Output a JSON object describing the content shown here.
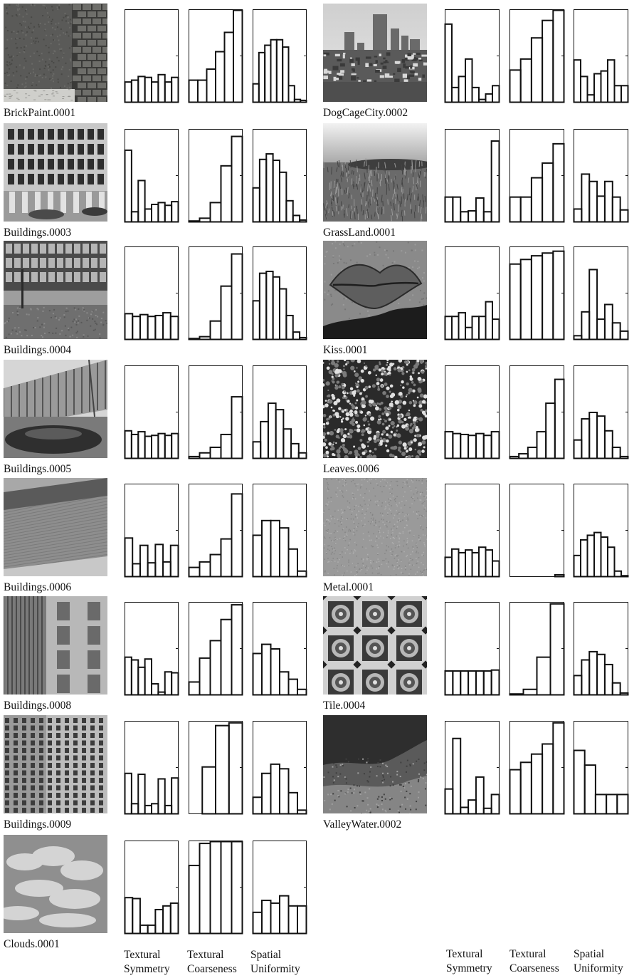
{
  "axis_labels": {
    "left": [
      "Textural Symmetry",
      "Textural Coarseness",
      "Spatial Uniformity"
    ],
    "right": [
      "Textural Symmetry",
      "Textural Coarseness",
      "Spatial Uniformity"
    ]
  },
  "chart_data": {
    "type": "bar",
    "ylim": [
      0,
      1
    ],
    "columns": [
      "Textural Symmetry",
      "Textural Coarseness",
      "Spatial Uniformity"
    ],
    "textures": [
      {
        "name": "BrickPaint.0001",
        "image": "brick",
        "symmetry": [
          0.22,
          0.24,
          0.28,
          0.27,
          0.22,
          0.3,
          0.22,
          0.27
        ],
        "coarseness": [
          0.24,
          0.24,
          0.36,
          0.55,
          0.76,
          1.0
        ],
        "uniformity": [
          0.2,
          0.54,
          0.62,
          0.68,
          0.68,
          0.6,
          0.18,
          0.03,
          0.02
        ]
      },
      {
        "name": "DogCageCity.0002",
        "image": "city",
        "symmetry": [
          0.85,
          0.16,
          0.28,
          0.47,
          0.16,
          0.03,
          0.09,
          0.18
        ],
        "coarseness": [
          0.35,
          0.47,
          0.7,
          0.89,
          1.0
        ],
        "uniformity": [
          0.46,
          0.28,
          0.08,
          0.31,
          0.34,
          0.46,
          0.18,
          0.18
        ]
      },
      {
        "name": "Buildings.0003",
        "image": "building3",
        "symmetry": [
          0.78,
          0.11,
          0.45,
          0.14,
          0.19,
          0.21,
          0.18,
          0.22
        ],
        "coarseness": [
          0.01,
          0.04,
          0.21,
          0.61,
          0.93
        ],
        "uniformity": [
          0.37,
          0.68,
          0.74,
          0.67,
          0.54,
          0.23,
          0.07,
          0.02
        ]
      },
      {
        "name": "GrassLand.0001",
        "image": "grass",
        "symmetry": [
          0.27,
          0.27,
          0.11,
          0.12,
          0.26,
          0.11,
          0.88
        ],
        "coarseness": [
          0.27,
          0.27,
          0.48,
          0.64,
          0.85
        ],
        "uniformity": [
          0.14,
          0.52,
          0.44,
          0.28,
          0.44,
          0.27,
          0.13
        ]
      },
      {
        "name": "Buildings.0004",
        "image": "building4",
        "symmetry": [
          0.28,
          0.25,
          0.27,
          0.25,
          0.26,
          0.29,
          0.25
        ],
        "coarseness": [
          0.01,
          0.03,
          0.2,
          0.58,
          0.93
        ],
        "uniformity": [
          0.42,
          0.72,
          0.74,
          0.68,
          0.55,
          0.26,
          0.08,
          0.02
        ]
      },
      {
        "name": "Kiss.0001",
        "image": "kiss",
        "symmetry": [
          0.25,
          0.25,
          0.29,
          0.13,
          0.25,
          0.25,
          0.41,
          0.22
        ],
        "coarseness": [
          0.82,
          0.87,
          0.91,
          0.94,
          0.96
        ],
        "uniformity": [
          0.04,
          0.3,
          0.76,
          0.22,
          0.38,
          0.18,
          0.09
        ]
      },
      {
        "name": "Buildings.0005",
        "image": "building5",
        "symmetry": [
          0.3,
          0.26,
          0.29,
          0.24,
          0.25,
          0.27,
          0.25,
          0.27
        ],
        "coarseness": [
          0.02,
          0.06,
          0.12,
          0.26,
          0.67
        ],
        "uniformity": [
          0.18,
          0.4,
          0.6,
          0.53,
          0.32,
          0.16,
          0.06
        ]
      },
      {
        "name": "Leaves.0006",
        "image": "leaves",
        "symmetry": [
          0.29,
          0.27,
          0.26,
          0.25,
          0.27,
          0.25,
          0.29
        ],
        "coarseness": [
          0.02,
          0.05,
          0.12,
          0.29,
          0.6,
          0.86
        ],
        "uniformity": [
          0.2,
          0.43,
          0.5,
          0.46,
          0.3,
          0.12,
          0.02
        ]
      },
      {
        "name": "Buildings.0006",
        "image": "building6",
        "symmetry": [
          0.42,
          0.14,
          0.34,
          0.15,
          0.35,
          0.16,
          0.34
        ],
        "coarseness": [
          0.1,
          0.16,
          0.24,
          0.41,
          0.9
        ],
        "uniformity": [
          0.45,
          0.61,
          0.61,
          0.53,
          0.3,
          0.06
        ]
      },
      {
        "name": "Metal.0001",
        "image": "metal",
        "symmetry": [
          0.21,
          0.3,
          0.26,
          0.29,
          0.26,
          0.32,
          0.29,
          0.17
        ],
        "coarseness": [
          0.0,
          0.0,
          0.0,
          0.0,
          0.0,
          0.02
        ],
        "uniformity": [
          0.23,
          0.4,
          0.45,
          0.48,
          0.43,
          0.32,
          0.06,
          0.01
        ]
      },
      {
        "name": "Buildings.0008",
        "image": "building8",
        "symmetry": [
          0.41,
          0.38,
          0.3,
          0.39,
          0.12,
          0.03,
          0.25,
          0.24
        ],
        "coarseness": [
          0.14,
          0.4,
          0.59,
          0.82,
          0.98
        ],
        "uniformity": [
          0.45,
          0.55,
          0.5,
          0.25,
          0.17,
          0.06
        ]
      },
      {
        "name": "Tile.0004",
        "image": "tile",
        "symmetry": [
          0.26,
          0.26,
          0.26,
          0.26,
          0.26,
          0.26,
          0.27
        ],
        "coarseness": [
          0.01,
          0.06,
          0.41,
          0.99
        ],
        "uniformity": [
          0.21,
          0.38,
          0.47,
          0.44,
          0.33,
          0.13,
          0.02
        ]
      },
      {
        "name": "Buildings.0009",
        "image": "building9",
        "symmetry": [
          0.44,
          0.11,
          0.43,
          0.09,
          0.11,
          0.38,
          0.09,
          0.39
        ],
        "coarseness": [
          0.0,
          0.51,
          0.96,
          0.99
        ],
        "uniformity": [
          0.18,
          0.44,
          0.54,
          0.49,
          0.23,
          0.04
        ]
      },
      {
        "name": "ValleyWater.0002",
        "image": "valley",
        "symmetry": [
          0.27,
          0.82,
          0.07,
          0.15,
          0.4,
          0.06,
          0.21
        ],
        "coarseness": [
          0.48,
          0.56,
          0.65,
          0.76,
          0.99
        ],
        "uniformity": [
          0.69,
          0.53,
          0.21,
          0.21,
          0.21
        ]
      },
      {
        "name": "Clouds.0001",
        "image": "clouds",
        "symmetry": [
          0.39,
          0.38,
          0.09,
          0.09,
          0.26,
          0.3,
          0.33
        ],
        "coarseness": [
          0.74,
          0.98,
          1.0,
          1.0,
          1.0
        ],
        "uniformity": [
          0.23,
          0.36,
          0.33,
          0.41,
          0.3,
          0.3
        ]
      }
    ]
  }
}
